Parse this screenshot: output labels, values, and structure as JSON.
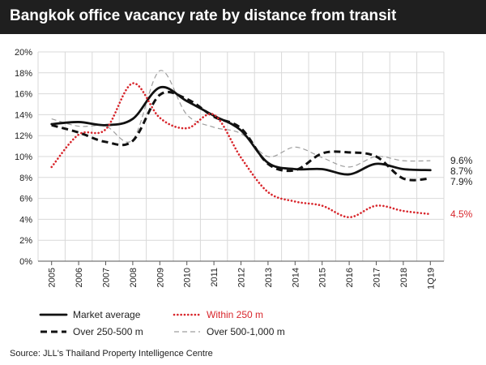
{
  "title": "Bangkok office vacancy rate by distance from transit",
  "source": "Source: JLL's Thailand Property Intelligence Centre",
  "chart_data": {
    "type": "line",
    "ylim": [
      0,
      20
    ],
    "y_ticks": [
      "0%",
      "2%",
      "4%",
      "6%",
      "8%",
      "10%",
      "12%",
      "14%",
      "16%",
      "18%",
      "20%"
    ],
    "categories": [
      "2005",
      "2006",
      "2007",
      "2008",
      "2009",
      "2010",
      "2011",
      "2012",
      "2013",
      "2014",
      "2015",
      "2016",
      "2017",
      "2018",
      "1Q19"
    ],
    "grid": true,
    "legend_position": "bottom",
    "series": [
      {
        "name": "Over 500-1,000 m",
        "color": "#9e9e9e",
        "style": "dashed-thin",
        "values": [
          13.6,
          12.9,
          12.9,
          11.6,
          18.2,
          14.0,
          12.8,
          12.2,
          10.0,
          10.9,
          9.9,
          9.0,
          10.0,
          9.6,
          9.6
        ],
        "end_label": "9.6%"
      },
      {
        "name": "Over 250-500 m",
        "color": "#111111",
        "style": "dashed-thick",
        "values": [
          13.0,
          12.3,
          11.4,
          11.5,
          15.9,
          15.5,
          13.8,
          12.7,
          9.3,
          8.7,
          10.3,
          10.4,
          10.0,
          7.9,
          7.9
        ],
        "end_label": "7.9%"
      },
      {
        "name": "Market average",
        "color": "#111111",
        "style": "solid",
        "values": [
          13.1,
          13.3,
          13.0,
          13.6,
          16.6,
          15.3,
          13.9,
          12.5,
          9.4,
          8.8,
          8.8,
          8.3,
          9.3,
          8.8,
          8.7
        ],
        "end_label": "8.7%"
      },
      {
        "name": "Within 250 m",
        "color": "#d8262c",
        "style": "dotted",
        "values": [
          9.0,
          12.1,
          12.6,
          17.0,
          13.7,
          12.7,
          14.0,
          9.9,
          6.6,
          5.7,
          5.3,
          4.2,
          5.3,
          4.8,
          4.5
        ],
        "end_label": "4.5%"
      }
    ]
  }
}
